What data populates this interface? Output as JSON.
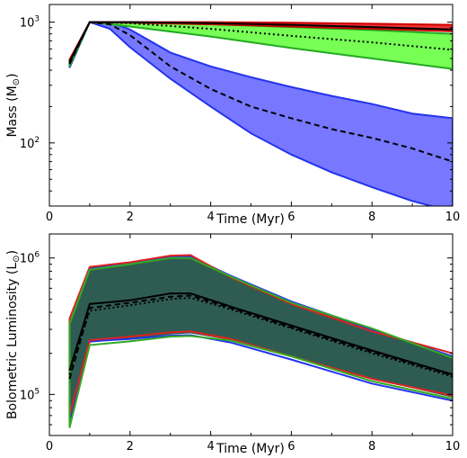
{
  "chart_data": [
    {
      "type": "area",
      "xlabel": "Time (Myr)",
      "ylabel_main": "Mass (M",
      "ylabel_sub": "⊙",
      "ylabel_close": ")",
      "xlim": [
        0,
        10
      ],
      "ylim": [
        30,
        1400
      ],
      "yscale": "log",
      "xticks": [
        "0",
        "2",
        "4",
        "6",
        "8",
        "10"
      ],
      "yticks": [
        {
          "base": "10",
          "exp": "3",
          "value": 1000
        },
        {
          "base": "10",
          "exp": "2",
          "value": 100
        }
      ],
      "bands": [
        {
          "color": "#7777ff",
          "edge": "#2233ee",
          "x": [
            0.5,
            1,
            1.5,
            2,
            3,
            4,
            5,
            6,
            7,
            8,
            9,
            10
          ],
          "upper": [
            480,
            1000,
            1000,
            870,
            560,
            430,
            350,
            290,
            245,
            210,
            175,
            160
          ],
          "lower": [
            420,
            1000,
            880,
            620,
            340,
            200,
            120,
            80,
            57,
            43,
            33,
            27
          ]
        },
        {
          "color": "#77ff55",
          "edge": "#22aa22",
          "x": [
            0.5,
            1,
            2,
            4,
            6,
            8,
            10
          ],
          "upper": [
            480,
            1000,
            1000,
            960,
            910,
            860,
            800
          ],
          "lower": [
            430,
            1000,
            920,
            760,
            610,
            500,
            410
          ]
        },
        {
          "color": "#ee3333",
          "edge": "#cc0000",
          "x": [
            0.5,
            1,
            2,
            4,
            6,
            8,
            10
          ],
          "upper": [
            490,
            1000,
            1000,
            1000,
            990,
            970,
            950
          ],
          "lower": [
            480,
            1000,
            990,
            960,
            920,
            880,
            840
          ]
        }
      ],
      "lines": [
        {
          "style": "dashed",
          "x": [
            0.5,
            1,
            1.5,
            2,
            3,
            4,
            5,
            6,
            7,
            8,
            9,
            10
          ],
          "y": [
            450,
            1000,
            960,
            780,
            430,
            280,
            200,
            160,
            130,
            110,
            90,
            70
          ]
        },
        {
          "style": "dotted",
          "x": [
            0.5,
            1,
            2,
            4,
            6,
            8,
            10
          ],
          "y": [
            460,
            1000,
            980,
            880,
            770,
            680,
            590
          ]
        },
        {
          "style": "solid",
          "x": [
            0.5,
            1,
            2,
            4,
            6,
            8,
            10
          ],
          "y": [
            470,
            1000,
            1000,
            980,
            950,
            910,
            870
          ]
        }
      ]
    },
    {
      "type": "area",
      "xlabel": "Time (Myr)",
      "ylabel_main": "Bolometric Luminosity (L",
      "ylabel_sub": "⊙",
      "ylabel_close": ")",
      "xlim": [
        0,
        10
      ],
      "ylim": [
        50000,
        1500000
      ],
      "yscale": "log",
      "xticks": [
        "0",
        "2",
        "4",
        "6",
        "8",
        "10"
      ],
      "yticks": [
        {
          "base": "10",
          "exp": "6",
          "value": 1000000
        },
        {
          "base": "10",
          "exp": "5",
          "value": 100000
        }
      ],
      "band": {
        "color": "#2f5c52",
        "x": [
          0.5,
          1,
          2,
          3,
          3.5,
          4.5,
          6,
          8,
          10
        ],
        "upper": [
          350000,
          850000,
          920000,
          1030000,
          1040000,
          740000,
          470000,
          300000,
          190000
        ],
        "lower": [
          60000,
          240000,
          255000,
          275000,
          280000,
          250000,
          190000,
          130000,
          95000
        ]
      },
      "edges": [
        {
          "color": "#2233ee",
          "x": [
            0.5,
            1,
            2,
            3,
            3.5,
            4.5,
            6,
            8,
            10
          ],
          "upper": [
            340000,
            830000,
            910000,
            1010000,
            1020000,
            740000,
            480000,
            300000,
            190000
          ],
          "lower": [
            65000,
            245000,
            255000,
            270000,
            272000,
            240000,
            180000,
            120000,
            90000
          ]
        },
        {
          "color": "#dd2222",
          "x": [
            0.5,
            1,
            2,
            3,
            3.5,
            4.5,
            6,
            8,
            10
          ],
          "upper": [
            360000,
            860000,
            930000,
            1040000,
            1050000,
            720000,
            460000,
            290000,
            200000
          ],
          "lower": [
            70000,
            250000,
            265000,
            285000,
            290000,
            255000,
            190000,
            130000,
            98000
          ]
        },
        {
          "color": "#33aa22",
          "x": [
            0.5,
            1,
            2,
            3,
            3.5,
            4.5,
            6,
            8,
            10
          ],
          "upper": [
            330000,
            820000,
            900000,
            1000000,
            1000000,
            730000,
            470000,
            305000,
            185000
          ],
          "lower": [
            57000,
            230000,
            245000,
            265000,
            268000,
            248000,
            190000,
            125000,
            93000
          ]
        }
      ],
      "lines": [
        {
          "style": "solid",
          "x": [
            0.5,
            1,
            2,
            3,
            3.5,
            4.5,
            6,
            8,
            10
          ],
          "y": [
            150000,
            460000,
            490000,
            550000,
            550000,
            440000,
            320000,
            210000,
            140000
          ]
        },
        {
          "style": "dashed",
          "x": [
            0.5,
            1,
            2,
            3,
            3.5,
            4.5,
            6,
            8,
            10
          ],
          "y": [
            130000,
            430000,
            470000,
            520000,
            530000,
            430000,
            310000,
            205000,
            138000
          ]
        },
        {
          "style": "dotted",
          "x": [
            0.5,
            1,
            2,
            3,
            3.5,
            4.5,
            6,
            8,
            10
          ],
          "y": [
            140000,
            410000,
            450000,
            500000,
            510000,
            420000,
            305000,
            200000,
            135000
          ]
        }
      ]
    }
  ]
}
